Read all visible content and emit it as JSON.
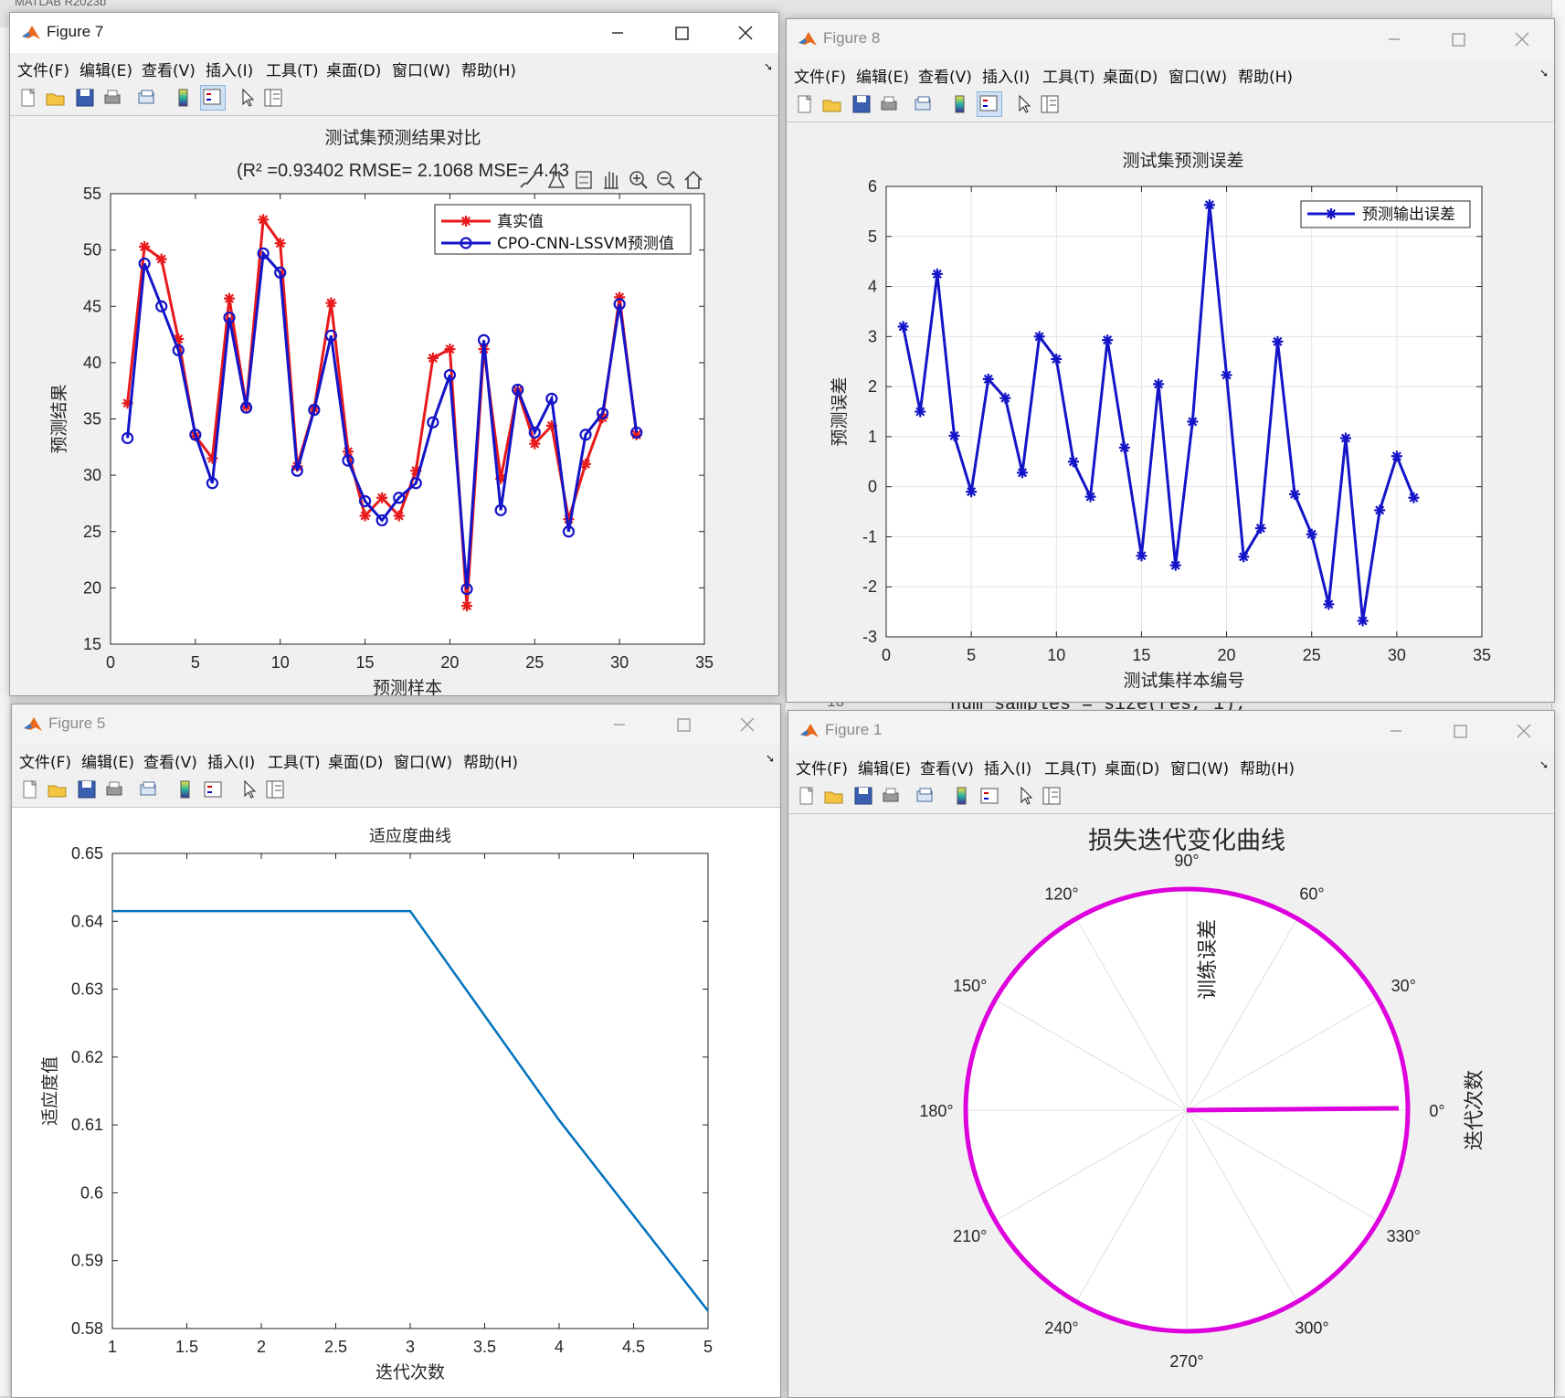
{
  "desktop": {
    "matlab_title": "MATLAB R2023b",
    "editor_code": "num_samples = size(res, 1);",
    "editor_line": "18"
  },
  "menu": [
    "文件(F)",
    "编辑(E)",
    "查看(V)",
    "插入(I)",
    "工具(T)",
    "桌面(D)",
    "窗口(W)",
    "帮助(H)"
  ],
  "windows": {
    "fig7": {
      "title": "Figure 7"
    },
    "fig8": {
      "title": "Figure 8"
    },
    "fig5": {
      "title": "Figure 5"
    },
    "fig1": {
      "title": "Figure 1"
    }
  },
  "colors": {
    "red": "#e8191b",
    "blue": "#1414c8",
    "fitness_line": "#0072bd",
    "polar": "#dd00dd"
  },
  "chart_data": [
    {
      "id": "fig7",
      "type": "line",
      "title": "测试集预测结果对比",
      "subtitle": "(R² =0.93402 RMSE= 2.1068 MSE= 4.43",
      "xlabel": "预测样本",
      "ylabel": "预测结果",
      "xlim": [
        0,
        35
      ],
      "ylim": [
        15,
        55
      ],
      "xticks": [
        0,
        5,
        10,
        15,
        20,
        25,
        30,
        35
      ],
      "yticks": [
        15,
        20,
        25,
        30,
        35,
        40,
        45,
        50,
        55
      ],
      "legend_position": "top-right",
      "x": [
        1,
        2,
        3,
        4,
        5,
        6,
        7,
        8,
        9,
        10,
        11,
        12,
        13,
        14,
        15,
        16,
        17,
        18,
        19,
        20,
        21,
        22,
        23,
        24,
        25,
        26,
        27,
        28,
        29,
        30,
        31
      ],
      "series": [
        {
          "name": "真实值",
          "marker": "*",
          "color": "#e8191b",
          "values": [
            36.4,
            50.3,
            49.2,
            42.1,
            33.5,
            31.5,
            45.7,
            36.1,
            52.7,
            50.6,
            30.8,
            35.9,
            45.3,
            32.1,
            26.4,
            28.0,
            26.4,
            30.4,
            40.4,
            41.2,
            18.4,
            41.2,
            29.7,
            37.5,
            32.8,
            34.4,
            26.1,
            31.0,
            35.1,
            45.8,
            33.6
          ]
        },
        {
          "name": "CPO-CNN-LSSVM预测值",
          "marker": "o",
          "color": "#1414c8",
          "values": [
            33.3,
            48.8,
            45.0,
            41.1,
            33.6,
            29.3,
            44.0,
            36.0,
            49.7,
            48.0,
            30.4,
            35.8,
            42.4,
            31.3,
            27.7,
            26.0,
            28.0,
            29.3,
            34.7,
            38.9,
            19.9,
            42.0,
            26.9,
            37.6,
            33.8,
            36.8,
            25.0,
            33.6,
            35.5,
            45.2,
            33.8
          ]
        }
      ],
      "toolbar_overlay_icons": [
        "brush-icon",
        "datatip-icon",
        "legend-icon",
        "pan-icon",
        "zoom-in-icon",
        "zoom-out-icon",
        "home-icon"
      ]
    },
    {
      "id": "fig8",
      "type": "line",
      "title": "测试集预测误差",
      "xlabel": "测试集样本编号",
      "ylabel": "预测误差",
      "xlim": [
        0,
        35
      ],
      "ylim": [
        -3,
        6
      ],
      "xticks": [
        0,
        5,
        10,
        15,
        20,
        25,
        30,
        35
      ],
      "yticks": [
        -3,
        -2,
        -1,
        0,
        1,
        2,
        3,
        4,
        5,
        6
      ],
      "grid": true,
      "legend_position": "top-right",
      "x": [
        1,
        2,
        3,
        4,
        5,
        6,
        7,
        8,
        9,
        10,
        11,
        12,
        13,
        14,
        15,
        16,
        17,
        18,
        19,
        20,
        21,
        22,
        23,
        24,
        25,
        26,
        27,
        28,
        29,
        30,
        31
      ],
      "series": [
        {
          "name": "预测输出误差",
          "marker": "*",
          "color": "#1414c8",
          "values": [
            3.2,
            1.5,
            4.25,
            1.02,
            -0.1,
            2.15,
            1.77,
            0.28,
            3.0,
            2.55,
            0.5,
            -0.2,
            2.93,
            0.78,
            -1.38,
            2.05,
            -1.57,
            1.3,
            5.63,
            2.23,
            -1.4,
            -0.83,
            2.9,
            -0.15,
            -0.95,
            -2.35,
            0.97,
            -2.68,
            -0.47,
            0.61,
            -0.22
          ]
        }
      ]
    },
    {
      "id": "fig5",
      "type": "line",
      "title": "适应度曲线",
      "xlabel": "迭代次数",
      "ylabel": "适应度值",
      "xlim": [
        1,
        5
      ],
      "ylim": [
        0.58,
        0.65
      ],
      "xticks": [
        1,
        1.5,
        2,
        2.5,
        3,
        3.5,
        4,
        4.5,
        5
      ],
      "yticks": [
        0.58,
        0.59,
        0.6,
        0.61,
        0.62,
        0.63,
        0.64,
        0.65
      ],
      "series": [
        {
          "name": "",
          "color": "#0072bd",
          "x": [
            1,
            2,
            3,
            4,
            5
          ],
          "values": [
            0.6415,
            0.6415,
            0.6415,
            0.6107,
            0.5826
          ]
        }
      ]
    },
    {
      "id": "fig1",
      "type": "polar",
      "title": "损失迭代变化曲线",
      "rlabel": "训练误差",
      "side_label": "迭代次数",
      "theta_ticks": [
        "0°",
        "30°",
        "60°",
        "90°",
        "120°",
        "150°",
        "180°",
        "210°",
        "240°",
        "270°",
        "300°",
        "330°"
      ],
      "series": [
        {
          "name": "",
          "color": "#dd00dd",
          "description_values": {
            "radius_max": 1.0,
            "full_circle": true
          }
        }
      ]
    }
  ]
}
